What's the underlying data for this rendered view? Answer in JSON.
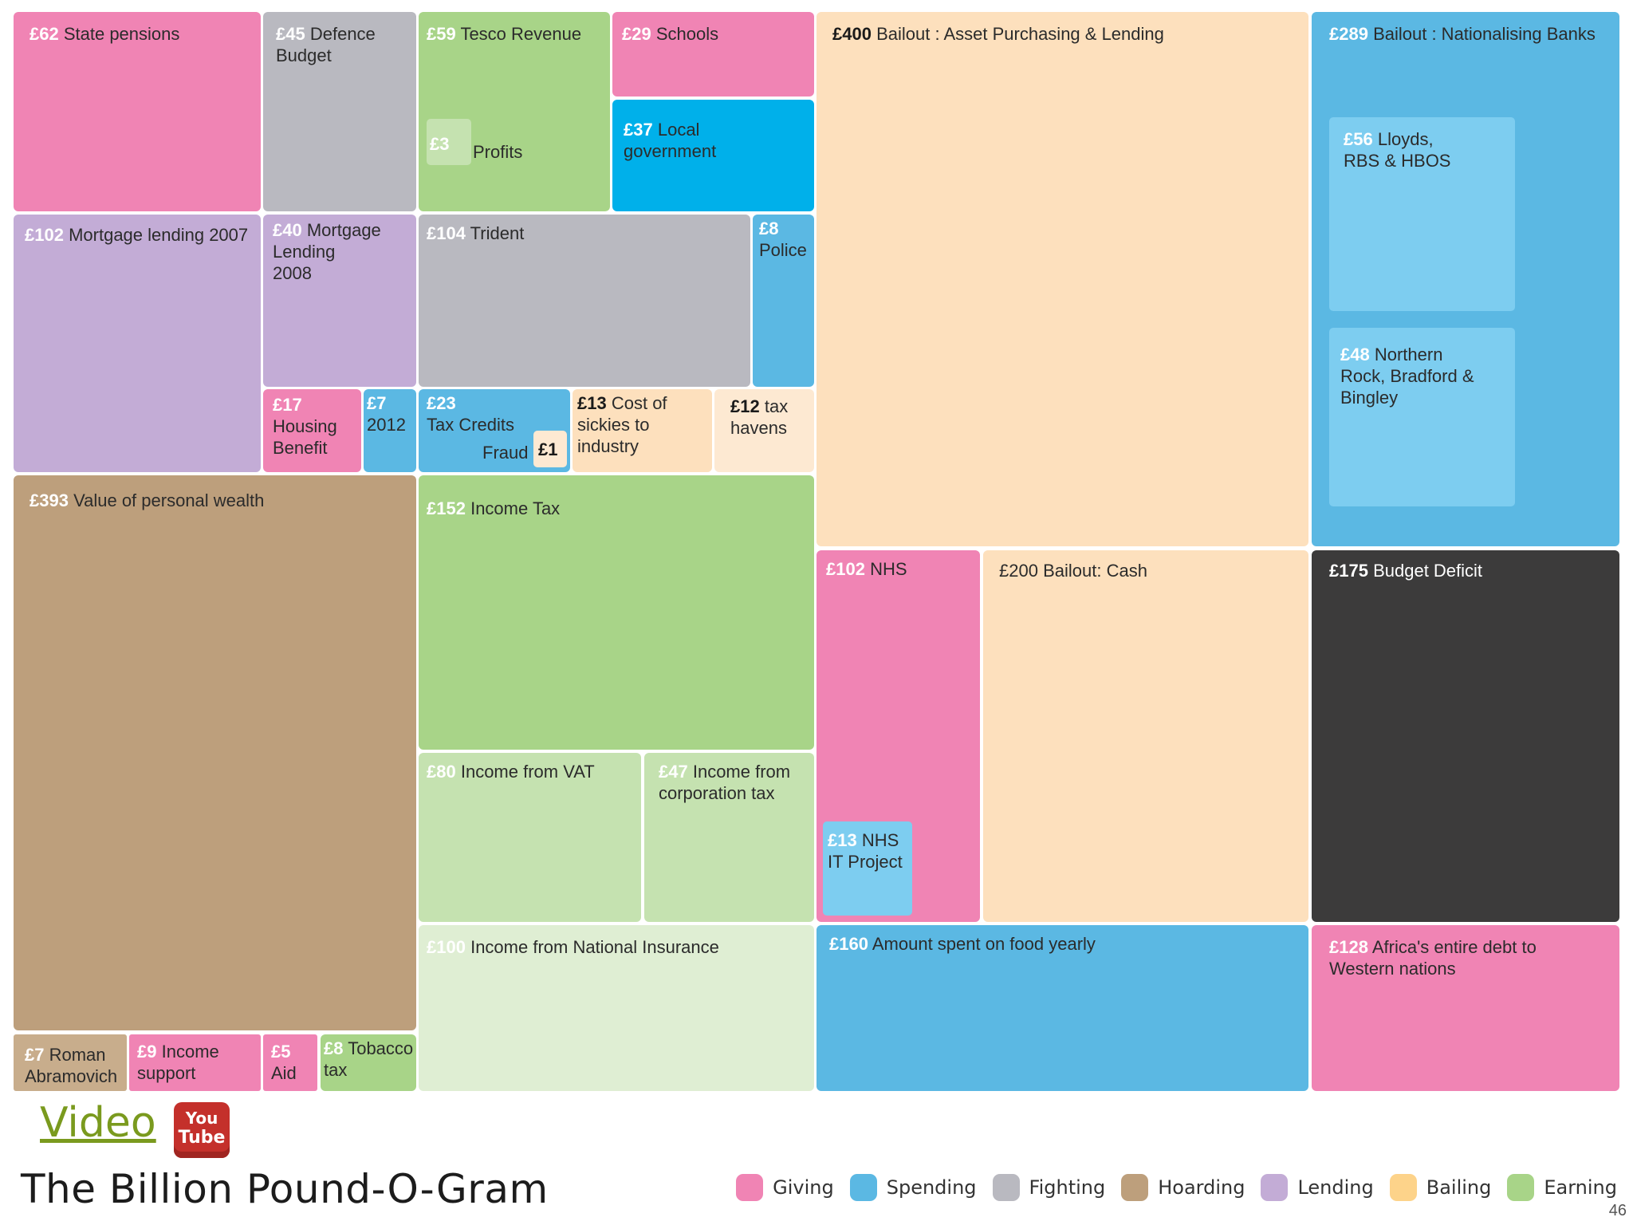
{
  "colors": {
    "giving": "#f084b4",
    "spending": "#5bb8e3",
    "spending_bright": "#00b0ea",
    "spending_light": "#7dcdf0",
    "fighting": "#b9b9c0",
    "hoarding": "#bd9f7c",
    "hoarding_light": "#c8ad8c",
    "lending": "#c3acd6",
    "bailing": "#fde0bd",
    "bailing_light": "#fde9d2",
    "earning": "#a8d488",
    "earning_light": "#c5e2b0",
    "earning_pale": "#dfeed3",
    "deficit": "#3c3b3b"
  },
  "tiles": {
    "state_pensions": {
      "amount": "£62",
      "text": "State pensions"
    },
    "defence": {
      "amount": "£45",
      "text": "Defence\nBudget"
    },
    "tesco": {
      "amount": "£59",
      "text": "Tesco Revenue"
    },
    "tesco_profits": {
      "amount": "£3",
      "text": "Profits"
    },
    "schools": {
      "amount": "£29",
      "text": "Schools"
    },
    "local_gov": {
      "amount": "£37",
      "text": "Local\ngovernment"
    },
    "bailout_asset": {
      "amount": "£400",
      "text": "Bailout : Asset Purchasing & Lending"
    },
    "bailout_nat": {
      "amount": "£289",
      "text": "Bailout : Nationalising Banks"
    },
    "lloyds": {
      "amount": "£56",
      "text": "Lloyds,\nRBS & HBOS"
    },
    "northern_rock": {
      "amount": "£48",
      "text": "Northern\nRock, Bradford &\nBingley"
    },
    "mortgage_2007": {
      "amount": "£102",
      "text": "Mortgage lending 2007"
    },
    "mortgage_2008": {
      "amount": "£40",
      "text": "Mortgage\nLending\n2008"
    },
    "trident": {
      "amount": "£104",
      "text": "Trident"
    },
    "police": {
      "amount": "£8",
      "text": "Police"
    },
    "housing": {
      "amount": "£17",
      "text": "Housing\nBenefit"
    },
    "mortgage_2012": {
      "amount": "£7",
      "text": "2012"
    },
    "tax_credits": {
      "amount": "£23",
      "text": "Tax Credits"
    },
    "fraud": {
      "amount": "£1",
      "text": "Fraud"
    },
    "sickies": {
      "amount": "£13",
      "text": "Cost of\nsickies to\nindustry"
    },
    "tax_havens": {
      "amount": "£12",
      "text": "tax\nhavens"
    },
    "personal_wealth": {
      "amount": "£393",
      "text": "Value of personal wealth"
    },
    "income_tax": {
      "amount": "£152",
      "text": "Income Tax"
    },
    "nhs": {
      "amount": "£102",
      "text": "NHS"
    },
    "nhs_it": {
      "amount": "£13",
      "text": "NHS\nIT Project"
    },
    "bailout_cash": {
      "amount": "£200",
      "text": "Bailout: Cash"
    },
    "budget_deficit": {
      "amount": "£175",
      "text": "Budget Deficit"
    },
    "vat": {
      "amount": "£80",
      "text": "Income from VAT"
    },
    "corp_tax": {
      "amount": "£47",
      "text": "Income from\ncorporation tax"
    },
    "nat_insurance": {
      "amount": "£100",
      "text": "Income from National Insurance"
    },
    "food": {
      "amount": "£160",
      "text": "Amount spent on food yearly"
    },
    "africa": {
      "amount": "£128",
      "text": "Africa's entire debt to\nWestern nations"
    },
    "abramovich": {
      "amount": "£7",
      "text": "Roman\nAbramovich"
    },
    "income_support": {
      "amount": "£9",
      "text": "Income\nsupport"
    },
    "aid": {
      "amount": "£5",
      "text": "Aid"
    },
    "tobacco": {
      "amount": "£8",
      "text": "Tobacco\ntax"
    }
  },
  "footer": {
    "video_label": "Video",
    "youtube_top": "You",
    "youtube_bottom": "Tube",
    "title": "The Billion Pound-O-Gram",
    "page_number": "46"
  },
  "legend": [
    {
      "label": "Giving",
      "color": "#f084b4"
    },
    {
      "label": "Spending",
      "color": "#5bb8e3"
    },
    {
      "label": "Fighting",
      "color": "#b9b9c0"
    },
    {
      "label": "Hoarding",
      "color": "#bd9f7c"
    },
    {
      "label": "Lending",
      "color": "#c3acd6"
    },
    {
      "label": "Bailing",
      "color": "#fdd38a"
    },
    {
      "label": "Earning",
      "color": "#a8d488"
    }
  ]
}
